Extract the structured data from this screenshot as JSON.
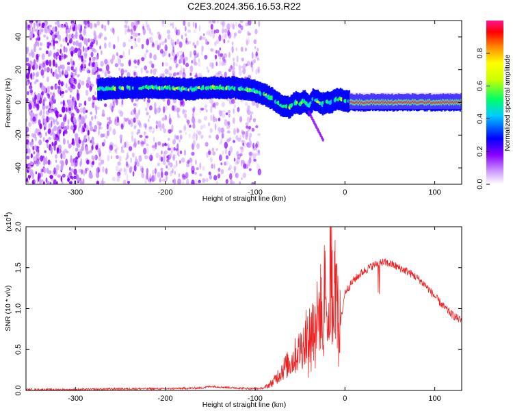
{
  "title": "C2E3.2024.356.16.53.R22",
  "chart_data": [
    {
      "type": "heatmap",
      "xlabel": "Height of straight line (km)",
      "ylabel": "Frequency (Hz)",
      "xlim": [
        -355,
        130
      ],
      "ylim": [
        -50,
        50
      ],
      "x_ticks": [
        -300,
        -200,
        -100,
        0,
        100
      ],
      "x_tick_labels": [
        "-300",
        "-200",
        "-100",
        "0",
        "100"
      ],
      "y_ticks": [
        -40,
        -20,
        0,
        20,
        40
      ],
      "y_tick_labels": [
        "-40",
        "-20",
        "0",
        "20",
        "40"
      ],
      "colorbar": {
        "label": "Normalized spectral amplitude",
        "range": [
          0,
          1
        ],
        "ticks": [
          0.0,
          0.2,
          0.4,
          0.6,
          0.8
        ],
        "tick_labels": [
          "0.0",
          "0.2",
          "0.4",
          "0.6",
          "0.8"
        ],
        "colormap": [
          "#ffffff",
          "#cc99ff",
          "#8800ff",
          "#0000ff",
          "#00ccff",
          "#00ff66",
          "#ccff00",
          "#ffff00",
          "#ff8800",
          "#ff0000",
          "#ff1493"
        ]
      },
      "ridge": {
        "x": [
          -275,
          -250,
          -225,
          -200,
          -175,
          -150,
          -125,
          -105,
          -90,
          -80,
          -70,
          -62,
          -55,
          -50,
          -45,
          -40,
          -35,
          -30,
          -25,
          -20,
          -15,
          -10,
          -5,
          0,
          10,
          50,
          130
        ],
        "y": [
          8,
          9,
          9,
          9,
          8,
          9,
          9,
          8,
          5,
          2,
          -2,
          -3,
          0,
          -1,
          1,
          -2,
          2,
          1,
          -1,
          0,
          0,
          2,
          2,
          1,
          0,
          0,
          0
        ]
      }
    },
    {
      "type": "line",
      "xlabel": "Height of straight line (km)",
      "ylabel": "SNR (10 * v/v)",
      "multiplier_label": "(x10",
      "multiplier_exp": "4",
      "multiplier_close": ")",
      "xlim": [
        -355,
        130
      ],
      "ylim": [
        0,
        2.0
      ],
      "x_ticks": [
        -300,
        -200,
        -100,
        0,
        100
      ],
      "x_tick_labels": [
        "-300",
        "-200",
        "-100",
        "0",
        "100"
      ],
      "y_ticks": [
        0,
        0.5,
        1.0,
        1.5,
        2.0
      ],
      "y_tick_labels": [
        "0.0",
        "0.5",
        "1.0",
        "1.5",
        "2.0"
      ],
      "line_color": "#ee2222",
      "series": [
        {
          "x": [
            -355,
            -300,
            -250,
            -200,
            -160,
            -150,
            -120,
            -100,
            -90,
            -80,
            -70,
            -60,
            -50,
            -40,
            -30,
            -25,
            -20,
            -15,
            -10,
            -5,
            0,
            10,
            20,
            30,
            40,
            50,
            60,
            70,
            80,
            90,
            100,
            110,
            120,
            130
          ],
          "y": [
            0.01,
            0.01,
            0.02,
            0.02,
            0.03,
            0.05,
            0.03,
            0.02,
            0.03,
            0.1,
            0.25,
            0.35,
            0.5,
            0.7,
            0.9,
            1.1,
            1.3,
            1.5,
            1.2,
            0.8,
            1.2,
            1.35,
            1.45,
            1.52,
            1.57,
            1.55,
            1.5,
            1.45,
            1.38,
            1.28,
            1.15,
            1.02,
            0.92,
            0.85
          ]
        }
      ]
    }
  ]
}
